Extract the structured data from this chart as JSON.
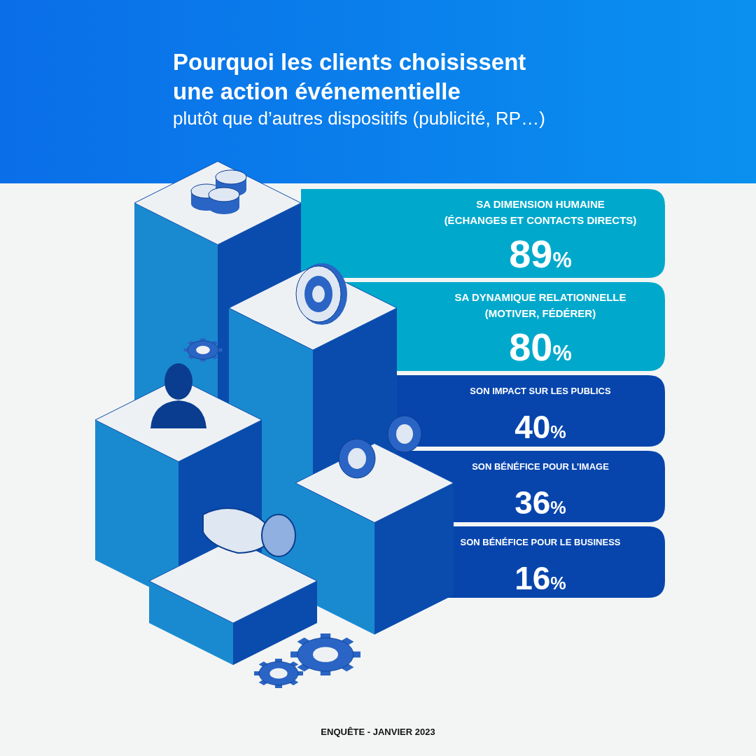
{
  "chart_data": {
    "type": "other",
    "title": "Pourquoi les clients choisissent une action événementielle",
    "subtitle": "plutôt que d’autres dispositifs (publicité, RP…)",
    "categories": [
      "SA DIMENSION HUMAINE (ÉCHANGES ET CONTACTS DIRECTS)",
      "SA DYNAMIQUE RELATIONNELLE (MOTIVER, FÉDÉRER)",
      "SON IMPACT SUR LES PUBLICS",
      "SON BÉNÉFICE POUR L’IMAGE",
      "SON BÉNÉFICE POUR LE BUSINESS"
    ],
    "values": [
      89,
      80,
      40,
      36,
      16
    ],
    "value_labels": [
      "89%",
      "80%",
      "40%",
      "36%",
      "16%"
    ],
    "colors": [
      "#00a9cc",
      "#00a9cc",
      "#0745ad",
      "#0745ad",
      "#0745ad"
    ],
    "annotations": [
      "ENQUÊTE - JANVIER 2023"
    ]
  }
}
